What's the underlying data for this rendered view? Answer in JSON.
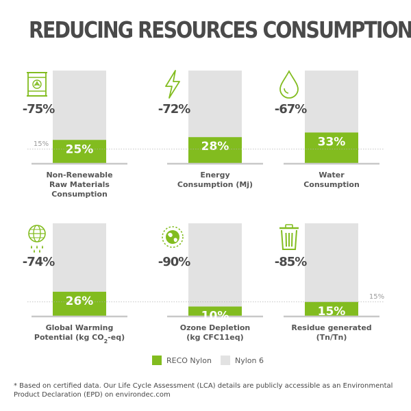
{
  "title": "REDUCING RESOURCES CONSUMPTION*",
  "colors": {
    "accent": "#82bc1f",
    "baseline": "#e2e2e2",
    "axis": "#c8c8c8",
    "text": "#4a4a4a"
  },
  "legend": {
    "reco_label": "RECO Nylon",
    "nylon_label": "Nylon 6"
  },
  "footnote": "* Based on certified data. Our Life Cycle Assessment (LCA) details are publicly accessible as an Environmental Product Declaration (EPD) on environdec.com",
  "chart_data": {
    "type": "bar",
    "ylim": [
      0,
      100
    ],
    "reference_value": 15,
    "reference_label": "15%",
    "series": [
      {
        "name": "RECO Nylon",
        "color": "#82bc1f"
      },
      {
        "name": "Nylon 6",
        "color": "#e2e2e2"
      }
    ],
    "panels": [
      {
        "label_lines": [
          "Non-Renewable",
          "Raw Materials",
          "Consumption"
        ],
        "icon": "oil-barrel-icon",
        "reduction_label": "-75%",
        "baseline_value": 100,
        "value": 25,
        "value_label": "25%"
      },
      {
        "label_lines": [
          "Energy",
          "Consumption (Mj)"
        ],
        "icon": "lightning-bolt-icon",
        "reduction_label": "-72%",
        "baseline_value": 100,
        "value": 28,
        "value_label": "28%"
      },
      {
        "label_lines": [
          "Water",
          "Consumption"
        ],
        "icon": "water-drop-icon",
        "reduction_label": "-67%",
        "baseline_value": 100,
        "value": 33,
        "value_label": "33%"
      },
      {
        "label_lines": [
          "Global Warming",
          "Potential (kg CO2-eq)"
        ],
        "icon": "globe-icon",
        "reduction_label": "-74%",
        "baseline_value": 100,
        "value": 26,
        "value_label": "26%"
      },
      {
        "label_lines": [
          "Ozone Depletion",
          "(kg CFC11eq)"
        ],
        "icon": "earth-icon",
        "reduction_label": "-90%",
        "baseline_value": 100,
        "value": 10,
        "value_label": "10%"
      },
      {
        "label_lines": [
          "Residue generated",
          "(Tn/Tn)"
        ],
        "icon": "trash-bin-icon",
        "reduction_label": "-85%",
        "baseline_value": 100,
        "value": 15,
        "value_label": "15%"
      }
    ]
  }
}
